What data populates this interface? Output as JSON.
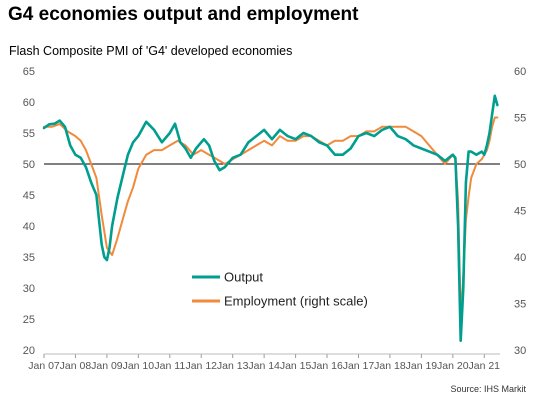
{
  "title": "G4 economies output and employment",
  "subtitle": "Flash Composite PMI of 'G4' developed economies",
  "source": "Source: IHS Markit",
  "chart_data": {
    "type": "line",
    "title": "G4 economies output and employment",
    "subtitle": "Flash Composite PMI of 'G4' developed economies",
    "x_tick_labels": [
      "Jan 07",
      "Jan 08",
      "Jan 09",
      "Jan 10",
      "Jan 11",
      "Jan 12",
      "Jan 13",
      "Jan 14",
      "Jan 15",
      "Jan 16",
      "Jan 17",
      "Jan 18",
      "Jan 19",
      "Jan 20",
      "Jan 21"
    ],
    "y_left": {
      "min": 20,
      "max": 65,
      "ticks": [
        20,
        25,
        30,
        35,
        40,
        45,
        50,
        55,
        60,
        65
      ]
    },
    "y_right": {
      "min": 30,
      "max": 60,
      "ticks": [
        30,
        35,
        40,
        45,
        50,
        55,
        60
      ]
    },
    "reference_line": {
      "axis": "left",
      "value": 50
    },
    "legend_position": "center",
    "series": [
      {
        "name": "Output",
        "axis": "left",
        "color": "#009e8f",
        "points": [
          [
            "2007-01",
            55.8
          ],
          [
            "2007-03",
            56.4
          ],
          [
            "2007-05",
            56.5
          ],
          [
            "2007-07",
            57.0
          ],
          [
            "2007-09",
            56.0
          ],
          [
            "2007-11",
            53.0
          ],
          [
            "2008-01",
            51.5
          ],
          [
            "2008-03",
            51.0
          ],
          [
            "2008-05",
            49.5
          ],
          [
            "2008-07",
            47.0
          ],
          [
            "2008-09",
            45.0
          ],
          [
            "2008-10",
            41.0
          ],
          [
            "2008-11",
            37.0
          ],
          [
            "2008-12",
            35.0
          ],
          [
            "2009-01",
            34.5
          ],
          [
            "2009-02",
            36.5
          ],
          [
            "2009-03",
            40.0
          ],
          [
            "2009-05",
            44.5
          ],
          [
            "2009-07",
            48.0
          ],
          [
            "2009-09",
            51.5
          ],
          [
            "2009-11",
            53.5
          ],
          [
            "2010-01",
            54.5
          ],
          [
            "2010-04",
            56.8
          ],
          [
            "2010-07",
            55.5
          ],
          [
            "2010-10",
            53.5
          ],
          [
            "2011-01",
            55.0
          ],
          [
            "2011-03",
            56.5
          ],
          [
            "2011-05",
            53.5
          ],
          [
            "2011-07",
            52.5
          ],
          [
            "2011-09",
            51.0
          ],
          [
            "2011-11",
            52.5
          ],
          [
            "2012-02",
            54.0
          ],
          [
            "2012-04",
            53.0
          ],
          [
            "2012-06",
            50.5
          ],
          [
            "2012-08",
            49.0
          ],
          [
            "2012-10",
            49.5
          ],
          [
            "2013-01",
            51.0
          ],
          [
            "2013-04",
            51.5
          ],
          [
            "2013-07",
            53.5
          ],
          [
            "2013-10",
            54.5
          ],
          [
            "2014-01",
            55.5
          ],
          [
            "2014-04",
            54.0
          ],
          [
            "2014-07",
            55.5
          ],
          [
            "2014-10",
            54.5
          ],
          [
            "2015-01",
            54.0
          ],
          [
            "2015-04",
            55.0
          ],
          [
            "2015-07",
            54.5
          ],
          [
            "2015-10",
            53.5
          ],
          [
            "2016-01",
            53.0
          ],
          [
            "2016-04",
            51.5
          ],
          [
            "2016-07",
            51.5
          ],
          [
            "2016-10",
            52.5
          ],
          [
            "2017-01",
            54.5
          ],
          [
            "2017-04",
            55.0
          ],
          [
            "2017-07",
            54.5
          ],
          [
            "2017-10",
            55.5
          ],
          [
            "2018-01",
            56.0
          ],
          [
            "2018-04",
            54.5
          ],
          [
            "2018-07",
            54.0
          ],
          [
            "2018-10",
            53.0
          ],
          [
            "2019-01",
            52.5
          ],
          [
            "2019-04",
            52.0
          ],
          [
            "2019-07",
            51.5
          ],
          [
            "2019-10",
            50.5
          ],
          [
            "2020-01",
            51.5
          ],
          [
            "2020-02",
            51.0
          ],
          [
            "2020-03",
            40.0
          ],
          [
            "2020-04",
            21.5
          ],
          [
            "2020-05",
            30.0
          ],
          [
            "2020-06",
            47.0
          ],
          [
            "2020-07",
            52.0
          ],
          [
            "2020-08",
            52.0
          ],
          [
            "2020-10",
            51.5
          ],
          [
            "2020-12",
            52.0
          ],
          [
            "2021-01",
            51.5
          ],
          [
            "2021-02",
            53.0
          ],
          [
            "2021-03",
            55.0
          ],
          [
            "2021-04",
            58.0
          ],
          [
            "2021-05",
            61.0
          ],
          [
            "2021-06",
            59.5
          ]
        ]
      },
      {
        "name": "Employment (right scale)",
        "axis": "right",
        "color": "#f08a3c",
        "points": [
          [
            "2007-01",
            54.0
          ],
          [
            "2007-04",
            54.0
          ],
          [
            "2007-07",
            54.3
          ],
          [
            "2007-10",
            53.5
          ],
          [
            "2008-01",
            53.0
          ],
          [
            "2008-03",
            52.5
          ],
          [
            "2008-05",
            51.5
          ],
          [
            "2008-07",
            50.0
          ],
          [
            "2008-09",
            48.5
          ],
          [
            "2008-11",
            44.5
          ],
          [
            "2009-01",
            41.0
          ],
          [
            "2009-03",
            40.2
          ],
          [
            "2009-05",
            42.0
          ],
          [
            "2009-07",
            44.0
          ],
          [
            "2009-09",
            46.0
          ],
          [
            "2009-11",
            47.5
          ],
          [
            "2010-01",
            49.5
          ],
          [
            "2010-04",
            51.0
          ],
          [
            "2010-07",
            51.5
          ],
          [
            "2010-10",
            51.5
          ],
          [
            "2011-01",
            52.0
          ],
          [
            "2011-04",
            52.5
          ],
          [
            "2011-07",
            52.0
          ],
          [
            "2011-10",
            51.0
          ],
          [
            "2012-01",
            51.5
          ],
          [
            "2012-04",
            51.0
          ],
          [
            "2012-07",
            50.5
          ],
          [
            "2012-10",
            50.0
          ],
          [
            "2013-01",
            50.5
          ],
          [
            "2013-04",
            51.0
          ],
          [
            "2013-07",
            51.5
          ],
          [
            "2013-10",
            52.0
          ],
          [
            "2014-01",
            52.5
          ],
          [
            "2014-04",
            52.0
          ],
          [
            "2014-07",
            53.0
          ],
          [
            "2014-10",
            52.5
          ],
          [
            "2015-01",
            52.5
          ],
          [
            "2015-04",
            53.0
          ],
          [
            "2015-07",
            53.0
          ],
          [
            "2015-10",
            52.5
          ],
          [
            "2016-01",
            52.0
          ],
          [
            "2016-04",
            52.5
          ],
          [
            "2016-07",
            52.5
          ],
          [
            "2016-10",
            53.0
          ],
          [
            "2017-01",
            53.0
          ],
          [
            "2017-04",
            53.5
          ],
          [
            "2017-07",
            53.5
          ],
          [
            "2017-10",
            54.0
          ],
          [
            "2018-01",
            54.0
          ],
          [
            "2018-04",
            54.0
          ],
          [
            "2018-07",
            54.0
          ],
          [
            "2018-10",
            53.5
          ],
          [
            "2019-01",
            53.0
          ],
          [
            "2019-04",
            52.0
          ],
          [
            "2019-07",
            51.0
          ],
          [
            "2019-10",
            50.0
          ],
          [
            "2020-01",
            51.0
          ],
          [
            "2020-02",
            50.5
          ],
          [
            "2020-03",
            46.0
          ],
          [
            "2020-04",
            33.5
          ],
          [
            "2020-05",
            38.0
          ],
          [
            "2020-06",
            44.0
          ],
          [
            "2020-07",
            46.5
          ],
          [
            "2020-08",
            48.5
          ],
          [
            "2020-10",
            50.0
          ],
          [
            "2020-12",
            50.5
          ],
          [
            "2021-01",
            51.0
          ],
          [
            "2021-02",
            51.5
          ],
          [
            "2021-03",
            52.5
          ],
          [
            "2021-04",
            54.0
          ],
          [
            "2021-05",
            55.0
          ],
          [
            "2021-06",
            55.0
          ]
        ]
      }
    ]
  }
}
